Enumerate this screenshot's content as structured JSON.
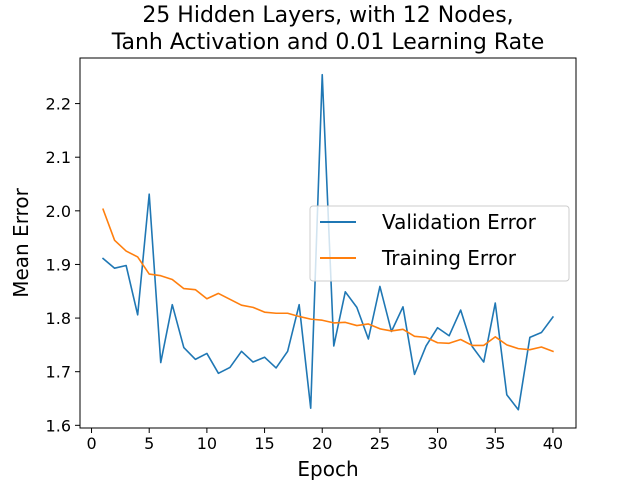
{
  "chart_data": {
    "type": "line",
    "title_line1": "25 Hidden Layers, with 12 Nodes,",
    "title_line2": "Tanh Activation and 0.01 Learning Rate",
    "xlabel": "Epoch",
    "ylabel": "Mean Error",
    "xlim": [
      -1,
      42
    ],
    "ylim": [
      1.595,
      2.285
    ],
    "xticks": [
      0,
      5,
      10,
      15,
      20,
      25,
      30,
      35,
      40
    ],
    "xtick_labels": [
      "0",
      "5",
      "10",
      "15",
      "20",
      "25",
      "30",
      "35",
      "40"
    ],
    "yticks": [
      1.6,
      1.7,
      1.8,
      1.9,
      2.0,
      2.1,
      2.2
    ],
    "ytick_labels": [
      "1.6",
      "1.7",
      "1.8",
      "1.9",
      "2.0",
      "2.1",
      "2.2"
    ],
    "grid": false,
    "legend_position": "center-right",
    "x": [
      1,
      2,
      3,
      4,
      5,
      6,
      7,
      8,
      9,
      10,
      11,
      12,
      13,
      14,
      15,
      16,
      17,
      18,
      19,
      20,
      21,
      22,
      23,
      24,
      25,
      26,
      27,
      28,
      29,
      30,
      31,
      32,
      33,
      34,
      35,
      36,
      37,
      38,
      39,
      40
    ],
    "series": [
      {
        "name": "Validation Error",
        "color": "#1f77b4",
        "values": [
          1.911,
          1.893,
          1.898,
          1.806,
          2.031,
          1.717,
          1.825,
          1.745,
          1.723,
          1.734,
          1.697,
          1.708,
          1.738,
          1.718,
          1.727,
          1.707,
          1.738,
          1.825,
          1.632,
          2.254,
          1.748,
          1.849,
          1.82,
          1.761,
          1.859,
          1.775,
          1.821,
          1.695,
          1.748,
          1.782,
          1.767,
          1.815,
          1.747,
          1.718,
          1.828,
          1.657,
          1.629,
          1.764,
          1.773,
          1.802
        ]
      },
      {
        "name": "Training Error",
        "color": "#ff7f0e",
        "values": [
          2.003,
          1.945,
          1.925,
          1.914,
          1.882,
          1.879,
          1.872,
          1.855,
          1.853,
          1.836,
          1.846,
          1.835,
          1.824,
          1.82,
          1.811,
          1.809,
          1.809,
          1.803,
          1.798,
          1.796,
          1.791,
          1.792,
          1.786,
          1.789,
          1.78,
          1.776,
          1.779,
          1.766,
          1.764,
          1.754,
          1.753,
          1.76,
          1.749,
          1.749,
          1.765,
          1.75,
          1.743,
          1.741,
          1.746,
          1.738
        ]
      }
    ]
  }
}
